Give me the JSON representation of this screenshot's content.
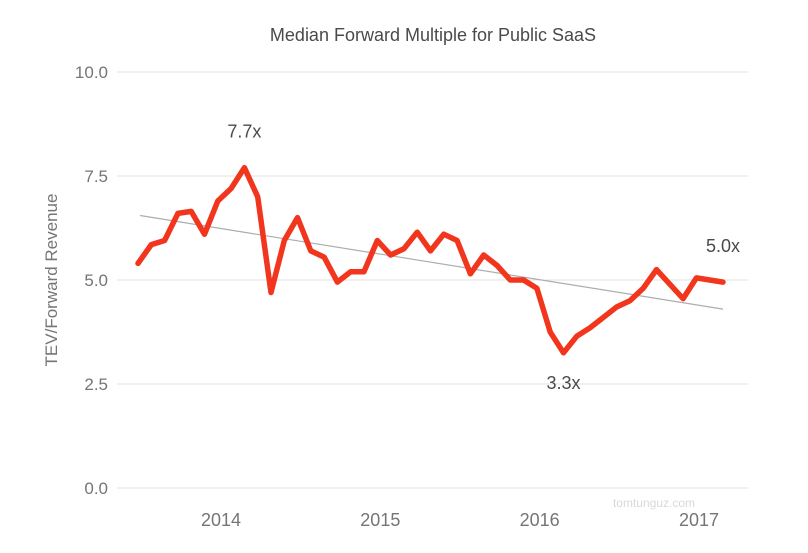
{
  "watermark": "tomtunguz.com",
  "chart_data": {
    "type": "line",
    "title": "Median Forward Multiple for Public SaaS",
    "ylabel": "TEV/Forward Revenue",
    "xlabel": "",
    "ylim": [
      0,
      10
    ],
    "ytick_labels": [
      "0.0",
      "2.5",
      "5.0",
      "7.5",
      "10.0"
    ],
    "ytick_values": [
      0,
      2.5,
      5,
      7.5,
      10
    ],
    "xtick_labels": [
      "2014",
      "2015",
      "2016",
      "2017"
    ],
    "grid": "horizontal-only",
    "legend": "none",
    "series_name": "Median forward multiple",
    "x": [
      "2013-07",
      "2013-08",
      "2013-09",
      "2013-10",
      "2013-11",
      "2013-12",
      "2014-01",
      "2014-02",
      "2014-03",
      "2014-04",
      "2014-05",
      "2014-06",
      "2014-07",
      "2014-08",
      "2014-09",
      "2014-10",
      "2014-11",
      "2014-12",
      "2015-01",
      "2015-02",
      "2015-03",
      "2015-04",
      "2015-05",
      "2015-06",
      "2015-07",
      "2015-08",
      "2015-09",
      "2015-10",
      "2015-11",
      "2015-12",
      "2016-01",
      "2016-02",
      "2016-03",
      "2016-04",
      "2016-05",
      "2016-06",
      "2016-07",
      "2016-08",
      "2016-09",
      "2016-10",
      "2016-11",
      "2016-12",
      "2017-01",
      "2017-02",
      "2017-03"
    ],
    "values": [
      5.4,
      5.85,
      5.95,
      6.6,
      6.65,
      6.1,
      6.9,
      7.2,
      7.7,
      7.0,
      4.7,
      5.95,
      6.5,
      5.7,
      5.55,
      4.95,
      5.2,
      5.2,
      5.95,
      5.6,
      5.75,
      6.15,
      5.7,
      6.1,
      5.95,
      5.15,
      5.6,
      5.35,
      5.0,
      5.0,
      4.8,
      3.75,
      3.25,
      3.65,
      3.85,
      4.1,
      4.35,
      4.5,
      4.8,
      5.25,
      4.9,
      4.55,
      5.05,
      5.0,
      4.95
    ],
    "trend_line": {
      "start_value": 6.55,
      "end_value": 4.3
    },
    "annotations": [
      {
        "label": "7.7x",
        "point_index": 8,
        "position": "above"
      },
      {
        "label": "3.3x",
        "point_index": 32,
        "position": "below"
      },
      {
        "label": "5.0x",
        "point_index": 44,
        "position": "above"
      }
    ],
    "colors": {
      "line": "#F1361D",
      "trend": "#ADADAD",
      "grid": "#E2E2E2",
      "title": "#4A4A4A",
      "axis_text": "#757575",
      "annotation": "#4A4A4A",
      "watermark": "#D8D8D8"
    }
  }
}
